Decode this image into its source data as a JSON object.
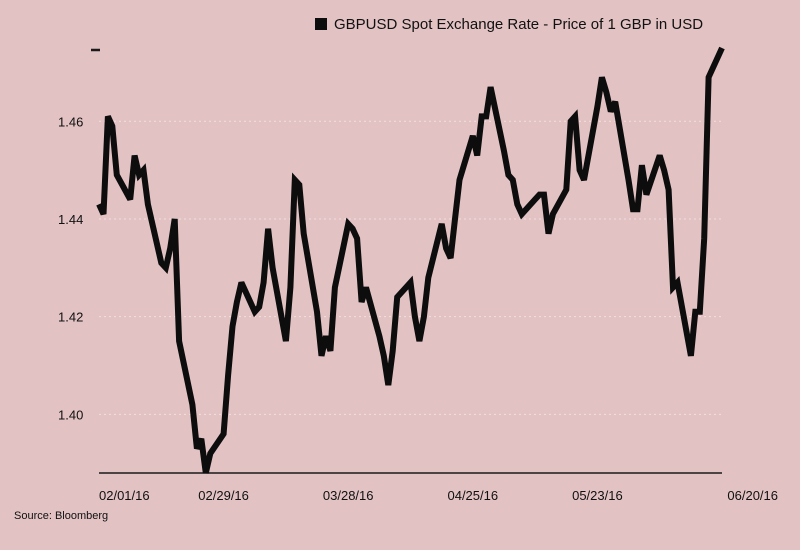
{
  "colors": {
    "background": "#e2c2c3",
    "line": "#0d0d0d",
    "grid": "#f1dfe0",
    "axis": "#1a1a1a",
    "text": "#111111"
  },
  "source": "Source: Bloomberg",
  "chart_data": {
    "type": "line",
    "title": "",
    "xlabel": "",
    "ylabel": "",
    "legend": {
      "label": "GBPUSD Spot Exchange Rate - Price of 1 GBP in USD",
      "placement": "top-center"
    },
    "grid": true,
    "ylim": [
      1.388,
      1.475
    ],
    "yticks": [
      1.4,
      1.42,
      1.44,
      1.46
    ],
    "ytick_labels": [
      "1.40",
      "1.42",
      "1.44",
      "1.46"
    ],
    "xlim": [
      "2016-02-01",
      "2016-06-20"
    ],
    "xticks": [
      "2016-02-01",
      "2016-02-29",
      "2016-03-28",
      "2016-04-25",
      "2016-05-23",
      "2016-06-20"
    ],
    "xtick_labels": [
      "02/01/16",
      "02/29/16",
      "03/28/16",
      "04/25/16",
      "05/23/16",
      "06/20/16"
    ],
    "series": [
      {
        "name": "GBPUSD Spot Exchange Rate - Price of 1 GBP in USD",
        "x": [
          "2016-02-01",
          "2016-02-02",
          "2016-02-03",
          "2016-02-04",
          "2016-02-05",
          "2016-02-08",
          "2016-02-09",
          "2016-02-10",
          "2016-02-11",
          "2016-02-12",
          "2016-02-15",
          "2016-02-16",
          "2016-02-17",
          "2016-02-18",
          "2016-02-19",
          "2016-02-22",
          "2016-02-23",
          "2016-02-24",
          "2016-02-25",
          "2016-02-26",
          "2016-02-29",
          "2016-03-01",
          "2016-03-02",
          "2016-03-03",
          "2016-03-04",
          "2016-03-07",
          "2016-03-08",
          "2016-03-09",
          "2016-03-10",
          "2016-03-11",
          "2016-03-14",
          "2016-03-15",
          "2016-03-16",
          "2016-03-17",
          "2016-03-18",
          "2016-03-21",
          "2016-03-22",
          "2016-03-23",
          "2016-03-24",
          "2016-03-25",
          "2016-03-28",
          "2016-03-29",
          "2016-03-30",
          "2016-03-31",
          "2016-04-01",
          "2016-04-04",
          "2016-04-05",
          "2016-04-06",
          "2016-04-07",
          "2016-04-08",
          "2016-04-11",
          "2016-04-12",
          "2016-04-13",
          "2016-04-14",
          "2016-04-15",
          "2016-04-18",
          "2016-04-19",
          "2016-04-20",
          "2016-04-21",
          "2016-04-22",
          "2016-04-25",
          "2016-04-26",
          "2016-04-27",
          "2016-04-28",
          "2016-04-29",
          "2016-05-02",
          "2016-05-03",
          "2016-05-04",
          "2016-05-05",
          "2016-05-06",
          "2016-05-09",
          "2016-05-10",
          "2016-05-11",
          "2016-05-12",
          "2016-05-13",
          "2016-05-16",
          "2016-05-17",
          "2016-05-18",
          "2016-05-19",
          "2016-05-20",
          "2016-05-23",
          "2016-05-24",
          "2016-05-25",
          "2016-05-26",
          "2016-05-27",
          "2016-05-30",
          "2016-05-31",
          "2016-06-01",
          "2016-06-02",
          "2016-06-03",
          "2016-06-06",
          "2016-06-07",
          "2016-06-08",
          "2016-06-09",
          "2016-06-10",
          "2016-06-13",
          "2016-06-14",
          "2016-06-15",
          "2016-06-16",
          "2016-06-17",
          "2016-06-20"
        ],
        "values": [
          1.443,
          1.441,
          1.461,
          1.459,
          1.449,
          1.444,
          1.453,
          1.449,
          1.45,
          1.443,
          1.431,
          1.43,
          1.434,
          1.44,
          1.415,
          1.402,
          1.393,
          1.395,
          1.388,
          1.392,
          1.396,
          1.408,
          1.418,
          1.423,
          1.427,
          1.421,
          1.422,
          1.427,
          1.438,
          1.43,
          1.415,
          1.426,
          1.448,
          1.447,
          1.437,
          1.421,
          1.412,
          1.416,
          1.413,
          1.426,
          1.439,
          1.438,
          1.436,
          1.423,
          1.426,
          1.416,
          1.412,
          1.406,
          1.413,
          1.424,
          1.427,
          1.42,
          1.415,
          1.42,
          1.428,
          1.439,
          1.434,
          1.432,
          1.44,
          1.448,
          1.457,
          1.453,
          1.461,
          1.461,
          1.467,
          1.454,
          1.449,
          1.448,
          1.443,
          1.441,
          1.444,
          1.445,
          1.445,
          1.437,
          1.441,
          1.446,
          1.46,
          1.461,
          1.45,
          1.448,
          1.463,
          1.469,
          1.466,
          1.462,
          1.464,
          1.448,
          1.442,
          1.442,
          1.451,
          1.445,
          1.453,
          1.45,
          1.446,
          1.426,
          1.427,
          1.412,
          1.421,
          1.421,
          1.436,
          1.469,
          1.475
        ]
      }
    ]
  }
}
